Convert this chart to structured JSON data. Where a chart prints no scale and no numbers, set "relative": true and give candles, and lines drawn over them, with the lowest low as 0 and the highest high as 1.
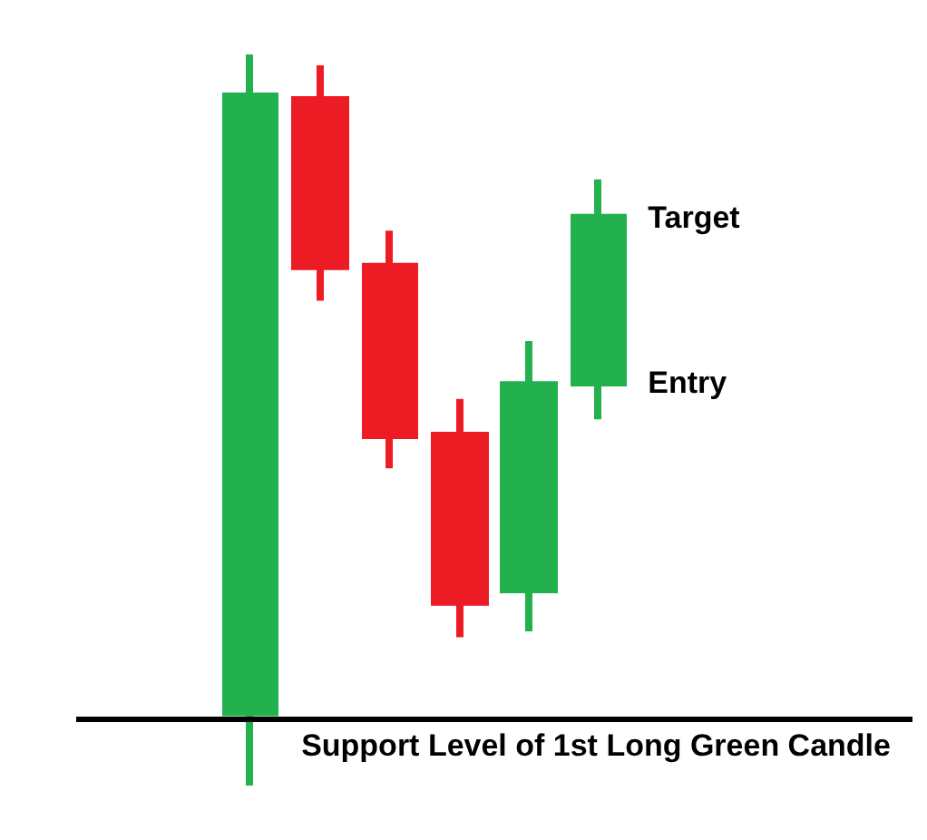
{
  "chart_data": {
    "type": "candlestick",
    "relative": true,
    "categories": [
      null,
      null,
      null,
      null,
      null,
      null
    ],
    "ohlc": [
      [
        0.1,
        1,
        0,
        0.943
      ],
      [
        0.938,
        0.985,
        0.663,
        0.71
      ],
      [
        0.71,
        0.759,
        0.434,
        0.479
      ],
      [
        0.479,
        0.529,
        0.203,
        0.251
      ],
      [
        0.268,
        0.608,
        0.211,
        0.548
      ],
      [
        0.551,
        0.829,
        0.501,
        0.777
      ]
    ],
    "colors": [
      "#22b14c",
      "#ed1c24",
      "#ed1c24",
      "#ed1c24",
      "#22b14c",
      "#22b14c"
    ],
    "ref_lines": [
      {
        "axis": "y",
        "value": 0.094,
        "label": "Support Level of 1st Long Green Candle",
        "color": "#000000"
      }
    ],
    "annotations": [
      "Target",
      "Entry"
    ],
    "grid": false
  }
}
